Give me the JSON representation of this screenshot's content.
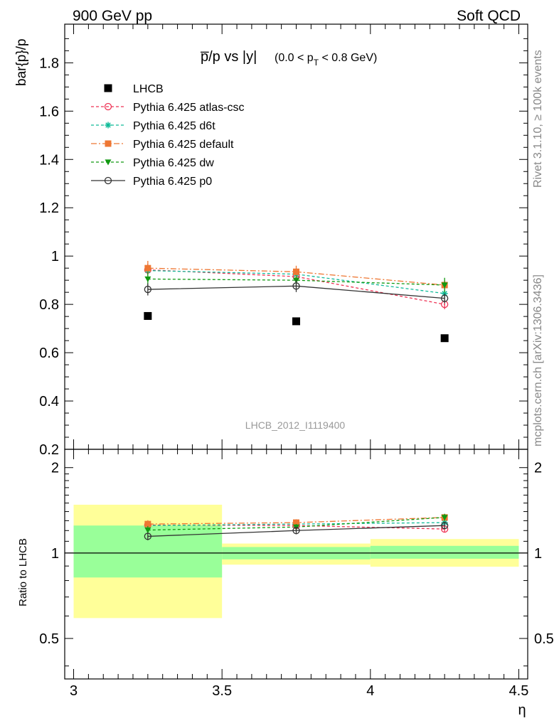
{
  "header": {
    "left": "900 GeV pp",
    "right": "Soft QCD"
  },
  "side_text": {
    "top": "Rivet 3.1.10, ≥ 100k events",
    "bottom": "mcplots.cern.ch [arXiv:1306.3436]"
  },
  "chart_data": [
    {
      "type": "scatter",
      "title_main": "p̅/p vs |y|",
      "title_sub": "(0.0 < p",
      "title_sub_index": "T",
      "title_sub_end": " < 0.8 GeV)",
      "ylabel": "bar{p}/p",
      "watermark": "LHCB_2012_I1119400",
      "ylim": [
        0.2,
        1.96
      ],
      "xlim": [
        3.0,
        4.5
      ],
      "y_ticks": [
        "0.2",
        "0.4",
        "0.6",
        "0.8",
        "1",
        "1.2",
        "1.4",
        "1.6",
        "1.8"
      ],
      "y_tick_values": [
        0.2,
        0.4,
        0.6,
        0.8,
        1.0,
        1.2,
        1.4,
        1.6,
        1.8
      ],
      "legend_position": "top-left",
      "x": [
        3.25,
        3.75,
        4.25
      ],
      "series": [
        {
          "name": "LHCB",
          "color": "#000000",
          "marker": "square",
          "line": "none",
          "values": [
            0.752,
            0.73,
            0.66
          ],
          "errors": [
            0.0,
            0.0,
            0.0
          ]
        },
        {
          "name": "Pythia 6.425 atlas-csc",
          "color": "#ee3355",
          "marker": "circle-open",
          "line": "dashed",
          "values": [
            0.943,
            0.915,
            0.8
          ],
          "errors": [
            0.025,
            0.02,
            0.02
          ]
        },
        {
          "name": "Pythia 6.425 d6t",
          "color": "#11bb99",
          "marker": "star",
          "line": "dashed",
          "values": [
            0.94,
            0.925,
            0.845
          ],
          "errors": [
            0.02,
            0.02,
            0.02
          ]
        },
        {
          "name": "Pythia 6.425 default",
          "color": "#ee7733",
          "marker": "square",
          "line": "dashdot",
          "values": [
            0.95,
            0.935,
            0.88
          ],
          "errors": [
            0.03,
            0.025,
            0.02
          ]
        },
        {
          "name": "Pythia 6.425 dw",
          "color": "#119911",
          "marker": "triangle-down",
          "line": "dashed",
          "values": [
            0.905,
            0.9,
            0.88
          ],
          "errors": [
            0.03,
            0.02,
            0.03
          ]
        },
        {
          "name": "Pythia 6.425 p0",
          "color": "#333333",
          "marker": "circle-open",
          "line": "solid",
          "values": [
            0.862,
            0.876,
            0.825
          ],
          "errors": [
            0.025,
            0.025,
            0.02
          ]
        }
      ]
    },
    {
      "type": "scatter",
      "ylabel": "Ratio to LHCB",
      "xlabel": "η",
      "ylim": [
        0.36,
        2.32
      ],
      "yscale": "log",
      "xlim": [
        2.97,
        4.53
      ],
      "x_ticks": [
        "3",
        "3.5",
        "4",
        "4.5"
      ],
      "x_tick_values": [
        3.0,
        3.5,
        4.0,
        4.5
      ],
      "y_ticks": [
        "0.5",
        "1",
        "2"
      ],
      "y_tick_values": [
        0.5,
        1.0,
        2.0
      ],
      "reference_line": 1.0,
      "bands": [
        {
          "x_range": [
            3.0,
            3.5
          ],
          "yellow": [
            0.59,
            1.48
          ],
          "green": [
            0.82,
            1.25
          ]
        },
        {
          "x_range": [
            3.5,
            4.0
          ],
          "yellow": [
            0.91,
            1.08
          ],
          "green": [
            0.95,
            1.05
          ]
        },
        {
          "x_range": [
            4.0,
            4.5
          ],
          "yellow": [
            0.895,
            1.12
          ],
          "green": [
            0.955,
            1.06
          ]
        }
      ],
      "x": [
        3.25,
        3.75,
        4.25
      ],
      "series": [
        {
          "name": "Pythia 6.425 atlas-csc",
          "color": "#ee3355",
          "marker": "circle-open",
          "line": "dashed",
          "values": [
            1.255,
            1.25,
            1.215
          ],
          "errors": [
            0.03,
            0.03,
            0.03
          ]
        },
        {
          "name": "Pythia 6.425 d6t",
          "color": "#11bb99",
          "marker": "star",
          "line": "dashed",
          "values": [
            1.25,
            1.265,
            1.28
          ],
          "errors": [
            0.03,
            0.03,
            0.03
          ]
        },
        {
          "name": "Pythia 6.425 default",
          "color": "#ee7733",
          "marker": "square",
          "line": "dashdot",
          "values": [
            1.265,
            1.28,
            1.335
          ],
          "errors": [
            0.04,
            0.035,
            0.03
          ]
        },
        {
          "name": "Pythia 6.425 dw",
          "color": "#119911",
          "marker": "triangle-down",
          "line": "dashed",
          "values": [
            1.205,
            1.235,
            1.335
          ],
          "errors": [
            0.04,
            0.03,
            0.04
          ]
        },
        {
          "name": "Pythia 6.425 p0",
          "color": "#333333",
          "marker": "circle-open",
          "line": "solid",
          "values": [
            1.145,
            1.2,
            1.25
          ],
          "errors": [
            0.035,
            0.035,
            0.03
          ]
        }
      ]
    }
  ]
}
